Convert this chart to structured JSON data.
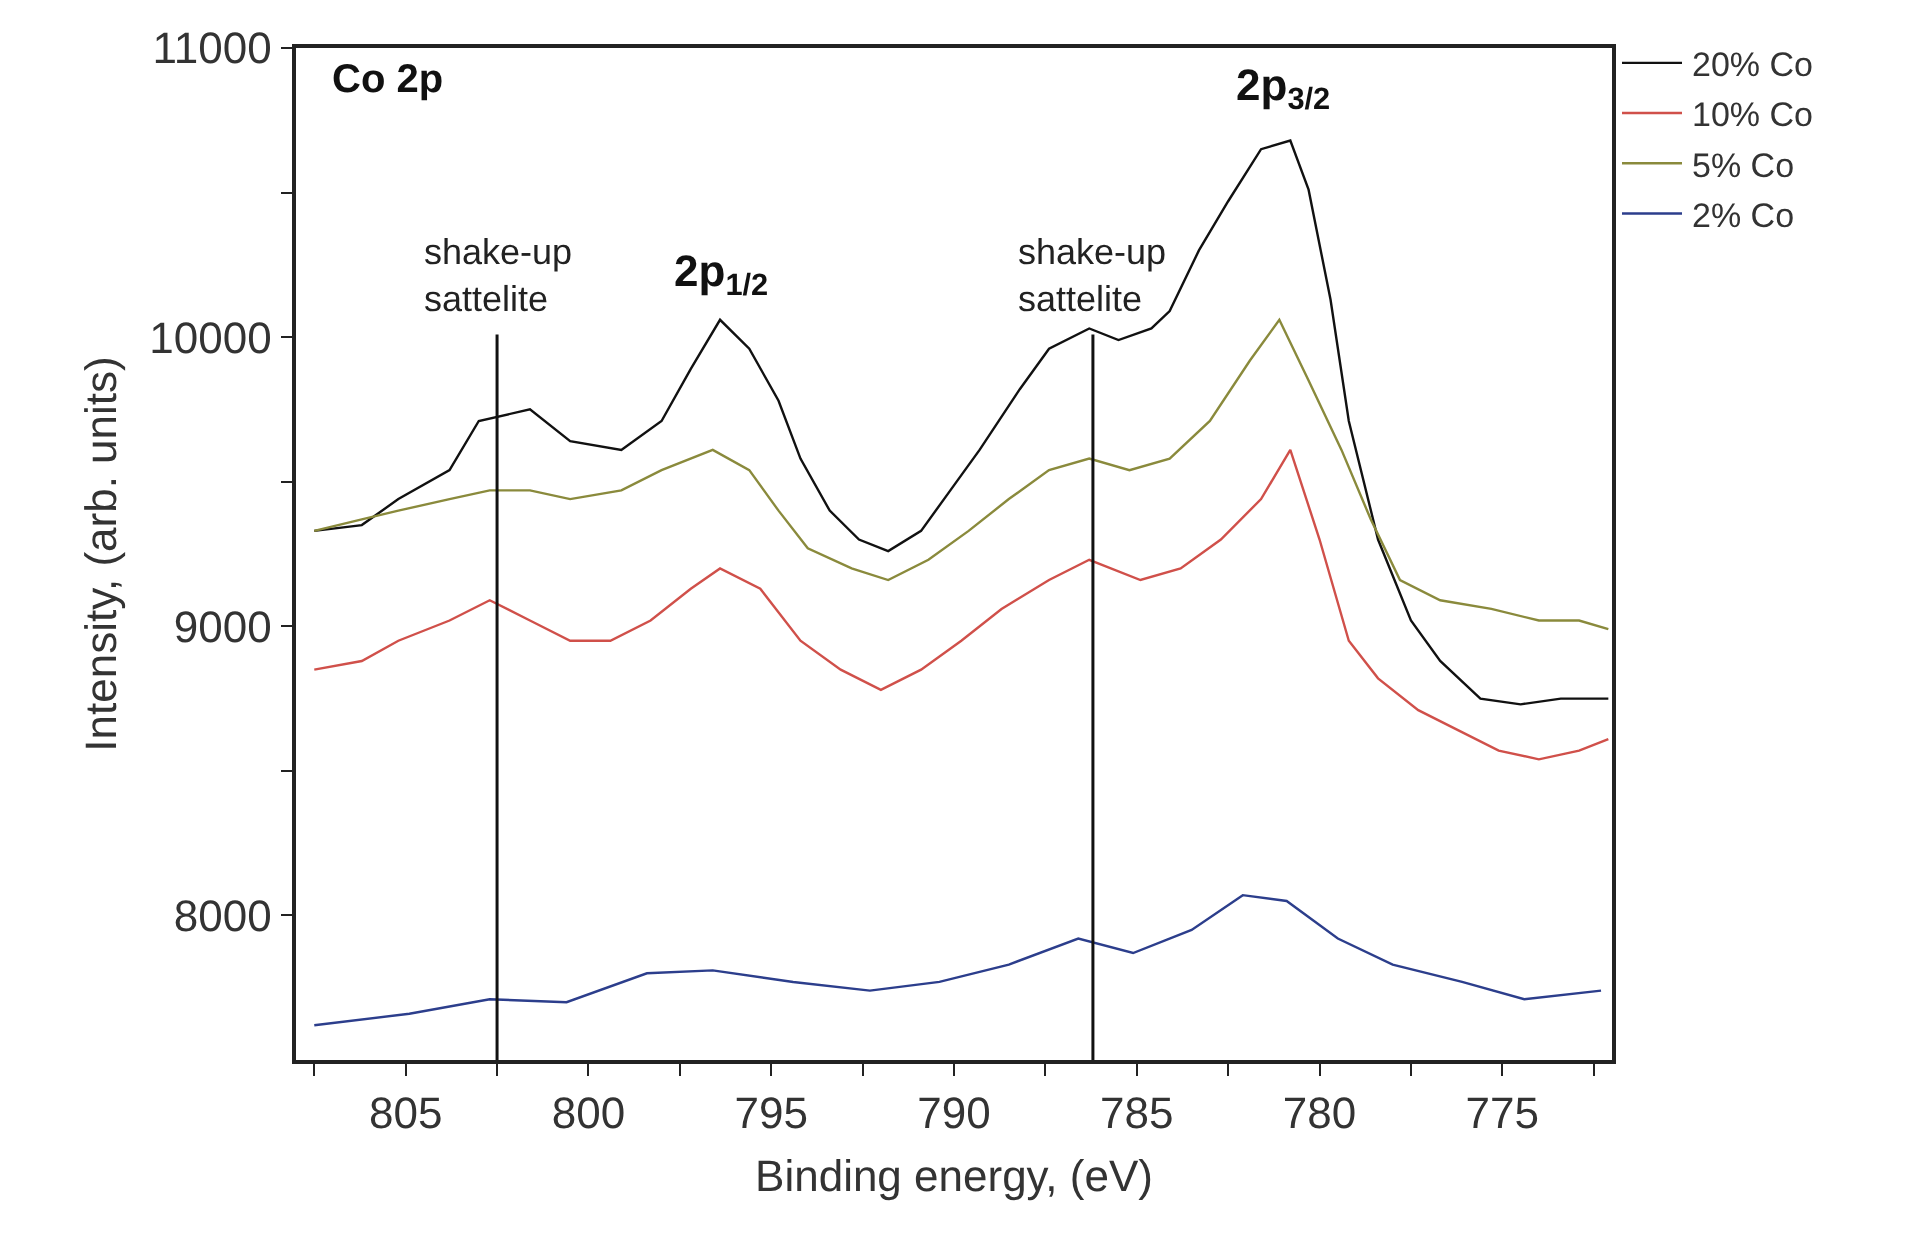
{
  "chart_data": {
    "type": "line",
    "xlabel": "Binding energy, (eV)",
    "ylabel": "Intensity, (arb. units)",
    "xlim": [
      808,
      772
    ],
    "xticks": [
      {
        "value": 807.5,
        "label": null
      },
      805,
      {
        "value": 802.5,
        "label": null
      },
      800,
      {
        "value": 797.5,
        "label": null
      },
      795,
      {
        "value": 792.5,
        "label": null
      },
      790,
      {
        "value": 787.5,
        "label": null
      },
      785,
      {
        "value": 782.5,
        "label": null
      },
      780,
      {
        "value": 777.5,
        "label": null
      },
      775,
      {
        "value": 772.5,
        "label": null
      }
    ],
    "ylim": [
      7500,
      11000
    ],
    "yticks": [
      8000,
      {
        "value": 8500,
        "label": null
      },
      9000,
      {
        "value": 9500,
        "label": null
      },
      10000,
      {
        "value": 10500,
        "label": null
      },
      11000
    ],
    "grid": false,
    "legend": "top right",
    "marker": "none",
    "line_style": "solid",
    "annotations": [
      "Co 2p",
      {
        "text": "2p$_{1/2}$",
        "x": 796.4,
        "y": 10060
      },
      {
        "text": "2p$_{3/2}$",
        "x": 781.0,
        "y": 10700
      }
    ],
    "ref_lines": [
      {
        "axis": "x",
        "value": 802.5,
        "label": "shake-up\nsattelite"
      },
      {
        "axis": "x",
        "value": 786.2,
        "label": "shake-up\nsattelite"
      }
    ],
    "series": [
      {
        "name": "20% Co",
        "color": "#111111",
        "x": [
          807.5,
          806.2,
          805.2,
          803.8,
          803.0,
          801.6,
          800.5,
          799.1,
          798.0,
          797.2,
          796.4,
          795.6,
          794.8,
          794.2,
          793.4,
          792.6,
          791.8,
          790.9,
          790.1,
          789.3,
          788.2,
          787.4,
          786.3,
          785.5,
          784.6,
          784.1,
          783.3,
          782.5,
          781.6,
          780.8,
          780.3,
          779.7,
          779.2,
          778.4,
          777.5,
          776.7,
          775.6,
          774.5,
          773.4,
          772.1
        ],
        "values": [
          9330,
          9350,
          9440,
          9540,
          9710,
          9750,
          9640,
          9610,
          9710,
          9890,
          10060,
          9960,
          9780,
          9580,
          9400,
          9300,
          9260,
          9330,
          9470,
          9610,
          9820,
          9960,
          10030,
          9990,
          10030,
          10090,
          10300,
          10470,
          10650,
          10680,
          10510,
          10130,
          9710,
          9300,
          9020,
          8880,
          8750,
          8730,
          8750,
          8750
        ]
      },
      {
        "name": "10% Co",
        "color": "#d0504a",
        "x": [
          807.5,
          806.2,
          805.2,
          803.8,
          802.7,
          801.6,
          800.5,
          799.4,
          798.3,
          797.2,
          796.4,
          795.3,
          794.2,
          793.1,
          792.0,
          790.9,
          789.8,
          788.7,
          787.4,
          786.3,
          784.9,
          783.8,
          782.7,
          781.6,
          780.8,
          780.0,
          779.2,
          778.4,
          777.3,
          776.2,
          775.1,
          774.0,
          772.9,
          772.1
        ],
        "values": [
          8850,
          8880,
          8950,
          9020,
          9090,
          9020,
          8950,
          8950,
          9020,
          9130,
          9200,
          9130,
          8950,
          8850,
          8780,
          8850,
          8950,
          9060,
          9160,
          9230,
          9160,
          9200,
          9300,
          9440,
          9610,
          9300,
          8950,
          8820,
          8710,
          8640,
          8570,
          8540,
          8570,
          8610
        ]
      },
      {
        "name": "5% Co",
        "color": "#8a8a3c",
        "x": [
          807.5,
          806.2,
          805.2,
          803.8,
          802.7,
          801.6,
          800.5,
          799.1,
          798.0,
          796.6,
          795.6,
          794.8,
          794.0,
          792.8,
          791.8,
          790.7,
          789.6,
          788.5,
          787.4,
          786.3,
          785.2,
          784.1,
          783.0,
          781.9,
          781.1,
          780.3,
          779.4,
          778.6,
          777.8,
          776.7,
          775.3,
          774.0,
          772.9,
          772.1
        ],
        "values": [
          9330,
          9370,
          9400,
          9440,
          9470,
          9470,
          9440,
          9470,
          9540,
          9610,
          9540,
          9400,
          9270,
          9200,
          9160,
          9230,
          9330,
          9440,
          9540,
          9580,
          9540,
          9580,
          9710,
          9920,
          10060,
          9850,
          9610,
          9370,
          9160,
          9090,
          9060,
          9020,
          9020,
          8990
        ]
      },
      {
        "name": "2% Co",
        "color": "#2c3e8c",
        "x": [
          807.5,
          804.9,
          802.7,
          800.6,
          798.4,
          796.6,
          794.4,
          792.3,
          790.4,
          788.5,
          786.6,
          785.1,
          783.5,
          782.1,
          780.9,
          779.5,
          778.0,
          776.1,
          774.4,
          772.3
        ],
        "values": [
          7620,
          7660,
          7710,
          7700,
          7800,
          7810,
          7770,
          7740,
          7770,
          7830,
          7920,
          7870,
          7950,
          8070,
          8050,
          7920,
          7830,
          7770,
          7710,
          7740
        ]
      }
    ]
  }
}
